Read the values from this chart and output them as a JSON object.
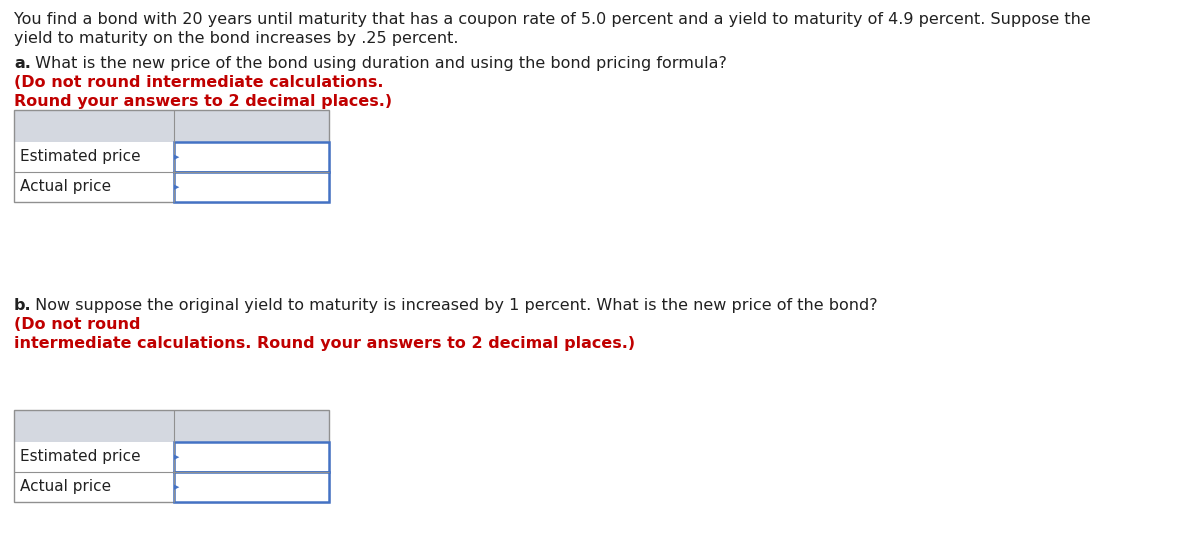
{
  "background_color": "#ffffff",
  "intro_line1": "You find a bond with 20 years until maturity that has a coupon rate of 5.0 percent and a yield to maturity of 4.9 percent. Suppose the",
  "intro_line2": "yield to maturity on the bond increases by .25 percent.",
  "part_a_bold": "a.",
  "part_a_normal": " What is the new price of the bond using duration and using the bond pricing formula? ",
  "part_a_red_bold": "(Do not round intermediate calculations.",
  "part_a_red_bold2": "Round your answers to 2 decimal places.)",
  "part_b_bold": "b.",
  "part_b_normal": " Now suppose the original yield to maturity is increased by 1 percent. What is the new price of the bond? ",
  "part_b_red_bold": "(Do not round",
  "part_b_red_bold2": "intermediate calculations. Round your answers to 2 decimal places.)",
  "row_labels": [
    "Estimated price",
    "Actual price"
  ],
  "header_bg": "#d4d8e0",
  "outer_border": "#909090",
  "blue_border": "#4472c4",
  "white": "#ffffff",
  "black": "#212121",
  "red": "#c00000",
  "fs": 11.5,
  "fig_w": 12.0,
  "fig_h": 5.57,
  "dpi": 100
}
